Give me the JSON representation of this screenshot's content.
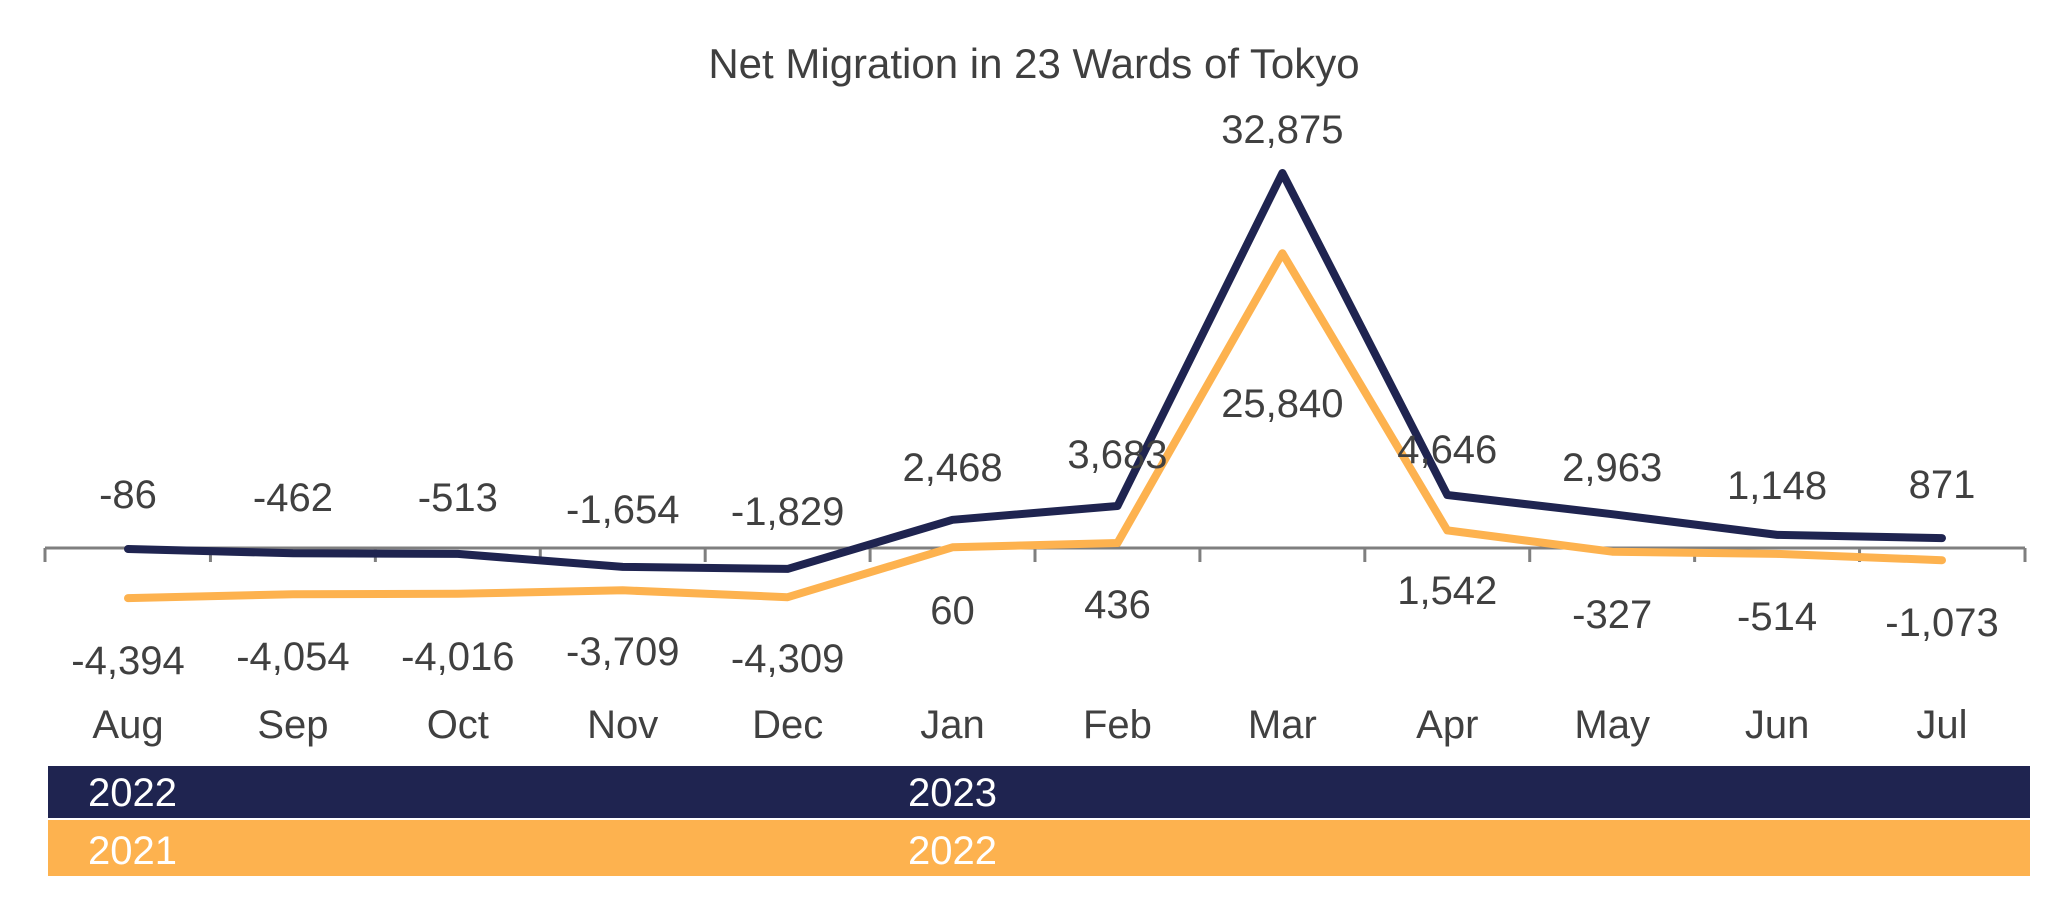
{
  "chart_data": {
    "type": "line",
    "title": "Net Migration in 23 Wards of Tokyo",
    "categories": [
      "Aug",
      "Sep",
      "Oct",
      "Nov",
      "Dec",
      "Jan",
      "Feb",
      "Mar",
      "Apr",
      "May",
      "Jun",
      "Jul"
    ],
    "series": [
      {
        "key": "navy",
        "color": "#1f2450",
        "values": [
          -86,
          -462,
          -513,
          -1654,
          -1829,
          2468,
          3683,
          32875,
          4646,
          2963,
          1148,
          871
        ],
        "labels": [
          "-86",
          "-462",
          "-513",
          "-1,654",
          "-1,829",
          "2,468",
          "3,683",
          "32,875",
          "4,646",
          "2,963",
          "1,148",
          "871"
        ]
      },
      {
        "key": "orange",
        "color": "#fdb24f",
        "values": [
          -4394,
          -4054,
          -4016,
          -3709,
          -4309,
          60,
          436,
          25840,
          1542,
          -327,
          -514,
          -1073
        ],
        "labels": [
          "-4,394",
          "-4,054",
          "-4,016",
          "-3,709",
          "-4,309",
          "60",
          "436",
          "25,840",
          "1,542",
          "-327",
          "-514",
          "-1,073"
        ]
      }
    ],
    "year_bands": [
      {
        "key": "navy",
        "color": "#1f2450",
        "start_year": "2022",
        "jan_year": "2023"
      },
      {
        "key": "orange",
        "color": "#fdb24f",
        "start_year": "2021",
        "jan_year": "2022"
      }
    ],
    "ylim": [
      -12000,
      36000
    ],
    "grid": false,
    "legend": "none"
  }
}
